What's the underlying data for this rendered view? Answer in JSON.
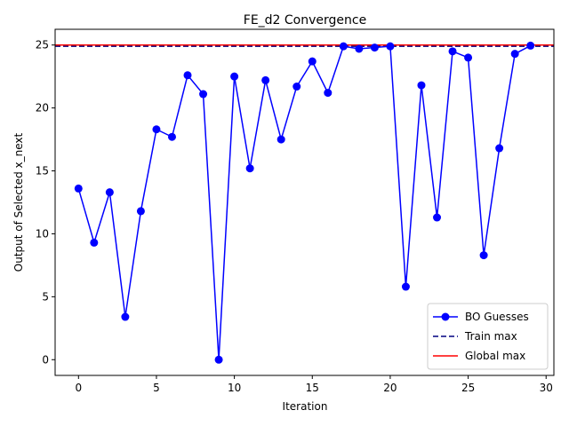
{
  "chart_data": {
    "type": "line",
    "title": "FE_d2 Convergence",
    "xlabel": "Iteration",
    "ylabel": "Output of Selected x_next",
    "xlim": [
      -1.5,
      30.5
    ],
    "ylim": [
      -1.25,
      26.25
    ],
    "xticks": [
      0,
      5,
      10,
      15,
      20,
      25,
      30
    ],
    "yticks": [
      0,
      5,
      10,
      15,
      20,
      25
    ],
    "grid": false,
    "legend_position": "lower-right",
    "x": [
      0,
      1,
      2,
      3,
      4,
      5,
      6,
      7,
      8,
      9,
      10,
      11,
      12,
      13,
      14,
      15,
      16,
      17,
      18,
      19,
      20,
      21,
      22,
      23,
      24,
      25,
      26,
      27,
      28,
      29
    ],
    "series": [
      {
        "name": "BO Guesses",
        "color": "#0000ff",
        "style": "solid-with-markers",
        "values": [
          13.6,
          9.3,
          13.3,
          3.4,
          11.8,
          18.3,
          17.7,
          22.6,
          21.1,
          0.0,
          22.5,
          15.2,
          22.2,
          17.5,
          21.7,
          23.7,
          21.2,
          24.9,
          24.7,
          24.8,
          24.9,
          5.8,
          21.8,
          11.3,
          24.5,
          24.0,
          8.3,
          16.8,
          24.3,
          24.95
        ]
      },
      {
        "name": "Train max",
        "color": "#000080",
        "style": "dashed",
        "value": 24.9
      },
      {
        "name": "Global max",
        "color": "#ff0000",
        "style": "solid",
        "value": 25.0
      }
    ]
  }
}
